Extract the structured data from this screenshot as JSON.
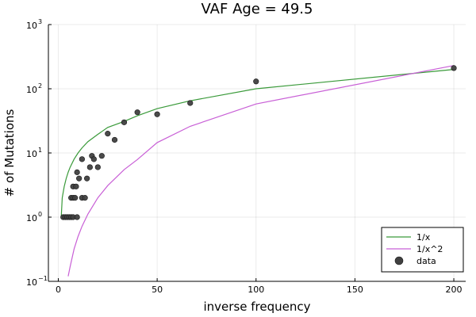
{
  "chart_data": {
    "type": "scatter",
    "title": "VAF Age = 49.5",
    "xlabel": "inverse frequency",
    "ylabel": "# of Mutations",
    "xlim": [
      -5,
      206
    ],
    "ylim": [
      0.1,
      1000
    ],
    "yscale": "log",
    "grid": true,
    "legend_position": "bottom-right",
    "x_ticks": [
      {
        "value": 0,
        "label": "0"
      },
      {
        "value": 50,
        "label": "50"
      },
      {
        "value": 100,
        "label": "100"
      },
      {
        "value": 150,
        "label": "150"
      },
      {
        "value": 200,
        "label": "200"
      }
    ],
    "y_ticks": [
      {
        "value": 0.1,
        "base": "10",
        "exp": "−1"
      },
      {
        "value": 1,
        "base": "10",
        "exp": "0"
      },
      {
        "value": 10,
        "base": "10",
        "exp": "1"
      },
      {
        "value": 100,
        "base": "10",
        "exp": "2"
      },
      {
        "value": 1000,
        "base": "10",
        "exp": "3"
      }
    ],
    "series": [
      {
        "name": "1/x",
        "kind": "line",
        "color": "#3a9a3a",
        "x": [
          1.5,
          2,
          3,
          4,
          5,
          6,
          8,
          10,
          12,
          15,
          20,
          25,
          33.3,
          40,
          50,
          66.7,
          100,
          200
        ],
        "y": [
          1.0,
          2.0,
          3.0,
          4.0,
          5.0,
          6.0,
          8.0,
          10.0,
          12.0,
          15.0,
          19.5,
          25.0,
          31.0,
          38.0,
          49.0,
          65.0,
          100.0,
          200.0
        ]
      },
      {
        "name": "1/x^2",
        "kind": "line",
        "color": "#c85fd6",
        "x": [
          5,
          6,
          8,
          10,
          12,
          15,
          20,
          25,
          33.3,
          40,
          50,
          66.7,
          100,
          200
        ],
        "y": [
          0.12,
          0.17,
          0.32,
          0.5,
          0.72,
          1.12,
          2.0,
          3.1,
          5.5,
          7.9,
          14.5,
          26.0,
          58.0,
          230.0
        ]
      },
      {
        "name": "data",
        "kind": "scatter",
        "color": "#404040",
        "points": [
          {
            "x": 2.5,
            "y": 1
          },
          {
            "x": 3.5,
            "y": 1
          },
          {
            "x": 4.5,
            "y": 1
          },
          {
            "x": 5.5,
            "y": 1
          },
          {
            "x": 6.5,
            "y": 1
          },
          {
            "x": 7.5,
            "y": 1
          },
          {
            "x": 9.5,
            "y": 1
          },
          {
            "x": 6.5,
            "y": 2
          },
          {
            "x": 7.5,
            "y": 2
          },
          {
            "x": 8.5,
            "y": 2
          },
          {
            "x": 7.5,
            "y": 3
          },
          {
            "x": 9,
            "y": 3
          },
          {
            "x": 10.5,
            "y": 4
          },
          {
            "x": 9.5,
            "y": 5
          },
          {
            "x": 12,
            "y": 2
          },
          {
            "x": 13.5,
            "y": 2
          },
          {
            "x": 14.5,
            "y": 4
          },
          {
            "x": 12,
            "y": 8
          },
          {
            "x": 16,
            "y": 6
          },
          {
            "x": 17,
            "y": 9
          },
          {
            "x": 18,
            "y": 8
          },
          {
            "x": 20,
            "y": 6
          },
          {
            "x": 22,
            "y": 9
          },
          {
            "x": 25,
            "y": 20
          },
          {
            "x": 28.5,
            "y": 16
          },
          {
            "x": 33.3,
            "y": 30
          },
          {
            "x": 40,
            "y": 43
          },
          {
            "x": 50,
            "y": 40
          },
          {
            "x": 66.7,
            "y": 60
          },
          {
            "x": 100,
            "y": 130
          },
          {
            "x": 200,
            "y": 210
          }
        ]
      }
    ]
  }
}
